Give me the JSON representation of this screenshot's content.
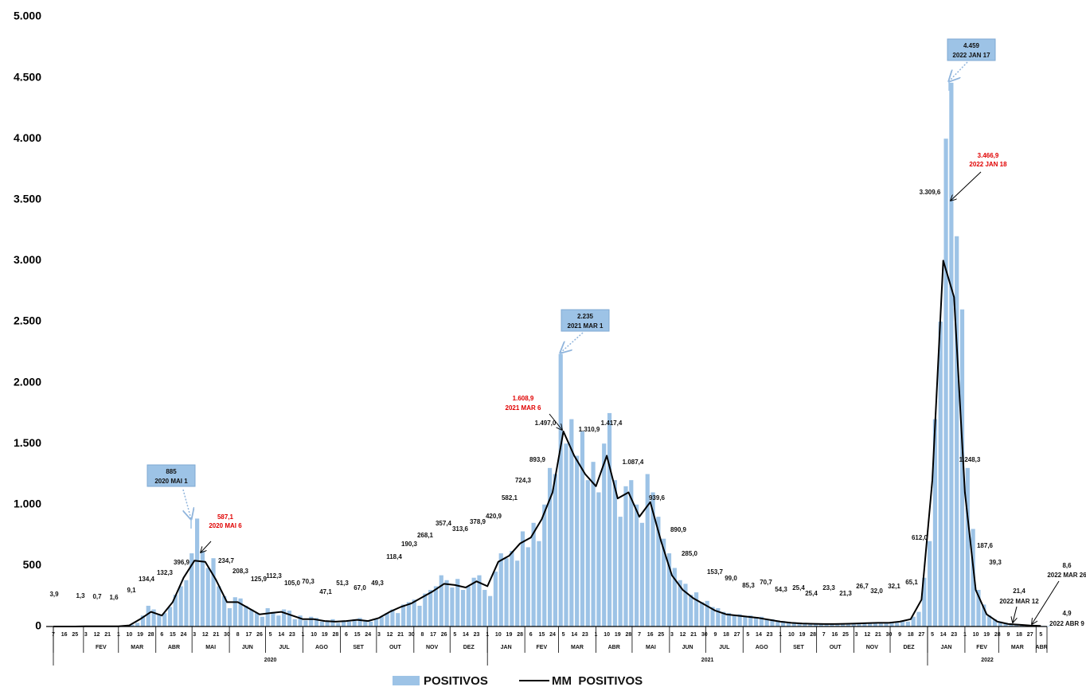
{
  "chart_data": {
    "type": "bar",
    "ylim": [
      0,
      5000
    ],
    "yticks": [
      0,
      500,
      {
        "value": 1000,
        "label": "1.000"
      },
      {
        "value": 1500,
        "label": "1.500"
      },
      {
        "value": 2000,
        "label": "2.000"
      },
      {
        "value": 2500,
        "label": "2.500"
      },
      {
        "value": 3000,
        "label": "3.000"
      },
      {
        "value": 3500,
        "label": "3.500"
      },
      {
        "value": 4000,
        "label": "4.000"
      },
      {
        "value": 4500,
        "label": "4.500"
      },
      {
        "value": 5000,
        "label": "5.000"
      }
    ],
    "x_axis": {
      "years": [
        {
          "label": "2020",
          "months": [
            {
              "label": null,
              "days": [
                "7",
                "16",
                "25"
              ]
            },
            {
              "label": "FEV",
              "days": [
                "3",
                "12",
                "21"
              ]
            },
            {
              "label": "MAR",
              "days": [
                "1",
                "10",
                "19",
                "28"
              ]
            },
            {
              "label": "ABR",
              "days": [
                "6",
                "15",
                "24"
              ]
            },
            {
              "label": "MAI",
              "days": [
                "3",
                "12",
                "21",
                "30"
              ]
            },
            {
              "label": "JUN",
              "days": [
                "8",
                "17",
                "26"
              ]
            },
            {
              "label": "JUL",
              "days": [
                "5",
                "14",
                "23"
              ]
            },
            {
              "label": "AGO",
              "days": [
                "1",
                "10",
                "19",
                "28"
              ]
            },
            {
              "label": "SET",
              "days": [
                "6",
                "15",
                "24"
              ]
            },
            {
              "label": "OUT",
              "days": [
                "3",
                "12",
                "21",
                "30"
              ]
            },
            {
              "label": "NOV",
              "days": [
                "8",
                "17",
                "26"
              ]
            },
            {
              "label": "DEZ",
              "days": [
                "5",
                "14",
                "23"
              ]
            }
          ]
        },
        {
          "label": "2021",
          "months": [
            {
              "label": "JAN",
              "days": [
                "1",
                "10",
                "19",
                "28"
              ]
            },
            {
              "label": "FEV",
              "days": [
                "6",
                "15",
                "24"
              ]
            },
            {
              "label": "MAR",
              "days": [
                "5",
                "14",
                "23"
              ]
            },
            {
              "label": "ABR",
              "days": [
                "1",
                "10",
                "19",
                "28"
              ]
            },
            {
              "label": "MAI",
              "days": [
                "7",
                "16",
                "25"
              ]
            },
            {
              "label": "JUN",
              "days": [
                "3",
                "12",
                "21",
                "30"
              ]
            },
            {
              "label": "JUL",
              "days": [
                "9",
                "18",
                "27"
              ]
            },
            {
              "label": "AGO",
              "days": [
                "5",
                "14",
                "23"
              ]
            },
            {
              "label": "SET",
              "days": [
                "1",
                "10",
                "19",
                "28"
              ]
            },
            {
              "label": "OUT",
              "days": [
                "7",
                "16",
                "25"
              ]
            },
            {
              "label": "NOV",
              "days": [
                "3",
                "12",
                "21",
                "30"
              ]
            },
            {
              "label": "DEZ",
              "days": [
                "9",
                "18",
                "27"
              ]
            }
          ]
        },
        {
          "label": "2022",
          "months": [
            {
              "label": "JAN",
              "days": [
                "5",
                "14",
                "23"
              ]
            },
            {
              "label": "FEV",
              "days": [
                "1",
                "10",
                "19",
                "28"
              ]
            },
            {
              "label": "MAR",
              "days": [
                "9",
                "18",
                "27"
              ]
            },
            {
              "label": "ABR",
              "days": [
                "5"
              ]
            }
          ]
        }
      ]
    },
    "series": [
      {
        "name": "POSITIVOS",
        "type": "bar",
        "color": "#9dc3e6",
        "values": [
          3,
          0,
          0,
          0,
          0,
          1,
          1,
          2,
          1,
          0,
          2,
          1,
          3,
          5,
          15,
          30,
          90,
          170,
          140,
          100,
          110,
          160,
          260,
          330,
          380,
          600,
          885,
          620,
          480,
          560,
          330,
          250,
          150,
          240,
          230,
          170,
          140,
          110,
          80,
          150,
          120,
          90,
          140,
          130,
          60,
          90,
          50,
          80,
          70,
          40,
          50,
          60,
          30,
          50,
          40,
          60,
          70,
          50,
          40,
          60,
          80,
          110,
          140,
          110,
          180,
          200,
          220,
          170,
          270,
          300,
          330,
          420,
          380,
          320,
          390,
          300,
          330,
          400,
          420,
          300,
          250,
          450,
          600,
          560,
          620,
          540,
          780,
          650,
          850,
          700,
          1000,
          1300,
          1250,
          2235,
          1500,
          1700,
          1400,
          1600,
          1200,
          1350,
          1100,
          1500,
          1750,
          1200,
          900,
          1150,
          1200,
          1000,
          850,
          1250,
          1100,
          900,
          720,
          600,
          480,
          380,
          350,
          260,
          280,
          200,
          210,
          160,
          150,
          120,
          110,
          90,
          100,
          80,
          90,
          70,
          80,
          60,
          60,
          50,
          45,
          35,
          35,
          25,
          30,
          20,
          25,
          20,
          22,
          18,
          22,
          20,
          25,
          20,
          28,
          22,
          30,
          25,
          35,
          28,
          35,
          30,
          45,
          40,
          80,
          120,
          400,
          700,
          1700,
          2500,
          4000,
          4459,
          3200,
          2600,
          1300,
          800,
          300,
          180,
          90,
          60,
          40,
          30,
          25,
          18,
          15,
          12,
          8,
          6,
          5,
          4
        ]
      },
      {
        "name": "MM  POSITIVOS",
        "type": "line",
        "color": "#000000",
        "values": [
          0,
          0,
          0,
          1,
          1,
          1,
          2,
          9,
          60,
          120,
          90,
          200,
          400,
          540,
          530,
          380,
          200,
          200,
          150,
          100,
          110,
          120,
          90,
          60,
          60,
          45,
          40,
          45,
          55,
          45,
          70,
          120,
          160,
          190,
          240,
          290,
          350,
          340,
          320,
          370,
          330,
          530,
          580,
          680,
          730,
          880,
          1100,
          1600,
          1400,
          1250,
          1150,
          1400,
          1050,
          1100,
          900,
          1020,
          700,
          420,
          300,
          230,
          180,
          130,
          100,
          90,
          80,
          70,
          55,
          40,
          30,
          25,
          22,
          20,
          20,
          22,
          25,
          28,
          30,
          30,
          40,
          60,
          220,
          1200,
          3000,
          2700,
          1100,
          300,
          100,
          40,
          20,
          15,
          8,
          5
        ]
      }
    ],
    "point_labels": [
      "3,9",
      "1,3",
      "0,7",
      "1,6",
      "9,1",
      "134,4",
      "132,3",
      "396,9",
      "234,7",
      "208,3",
      "125,9",
      "112,3",
      "105,0",
      "70,3",
      "47,1",
      "51,3",
      "67,0",
      "49,3",
      "118,4",
      "190,3",
      "268,1",
      "357,4",
      "313,6",
      "378,9",
      "420,9",
      "582,1",
      "724,3",
      "893,9",
      "1.497,0",
      "1.310,9",
      "1.417,4",
      "1.087,4",
      "939,6",
      "890,9",
      "285,0",
      "153,7",
      "99,0",
      "85,3",
      "70,7",
      "54,3",
      "25,4",
      "25,4",
      "23,3",
      "21,3",
      "26,7",
      "32,0",
      "32,1",
      "65,1",
      "612,0",
      "3.309,6",
      "1.248,3",
      "187,6",
      "39,3"
    ],
    "callouts": [
      {
        "value": "885",
        "date": "2020 MAI 1"
      },
      {
        "value": "587,1",
        "date": "2020 MAI 6"
      },
      {
        "value": "2.235",
        "date": "2021 MAR 1"
      },
      {
        "value": "1.608,9",
        "date": "2021 MAR 6"
      },
      {
        "value": "4.459",
        "date": "2022 JAN 17"
      },
      {
        "value": "3.466,9",
        "date": "2022 JAN 18"
      },
      {
        "value": "21,4",
        "date": "2022 MAR 12"
      },
      {
        "value": "8,6",
        "date": "2022 MAR 26"
      },
      {
        "value": "4,9",
        "date": "2022 ABR 9"
      }
    ]
  }
}
